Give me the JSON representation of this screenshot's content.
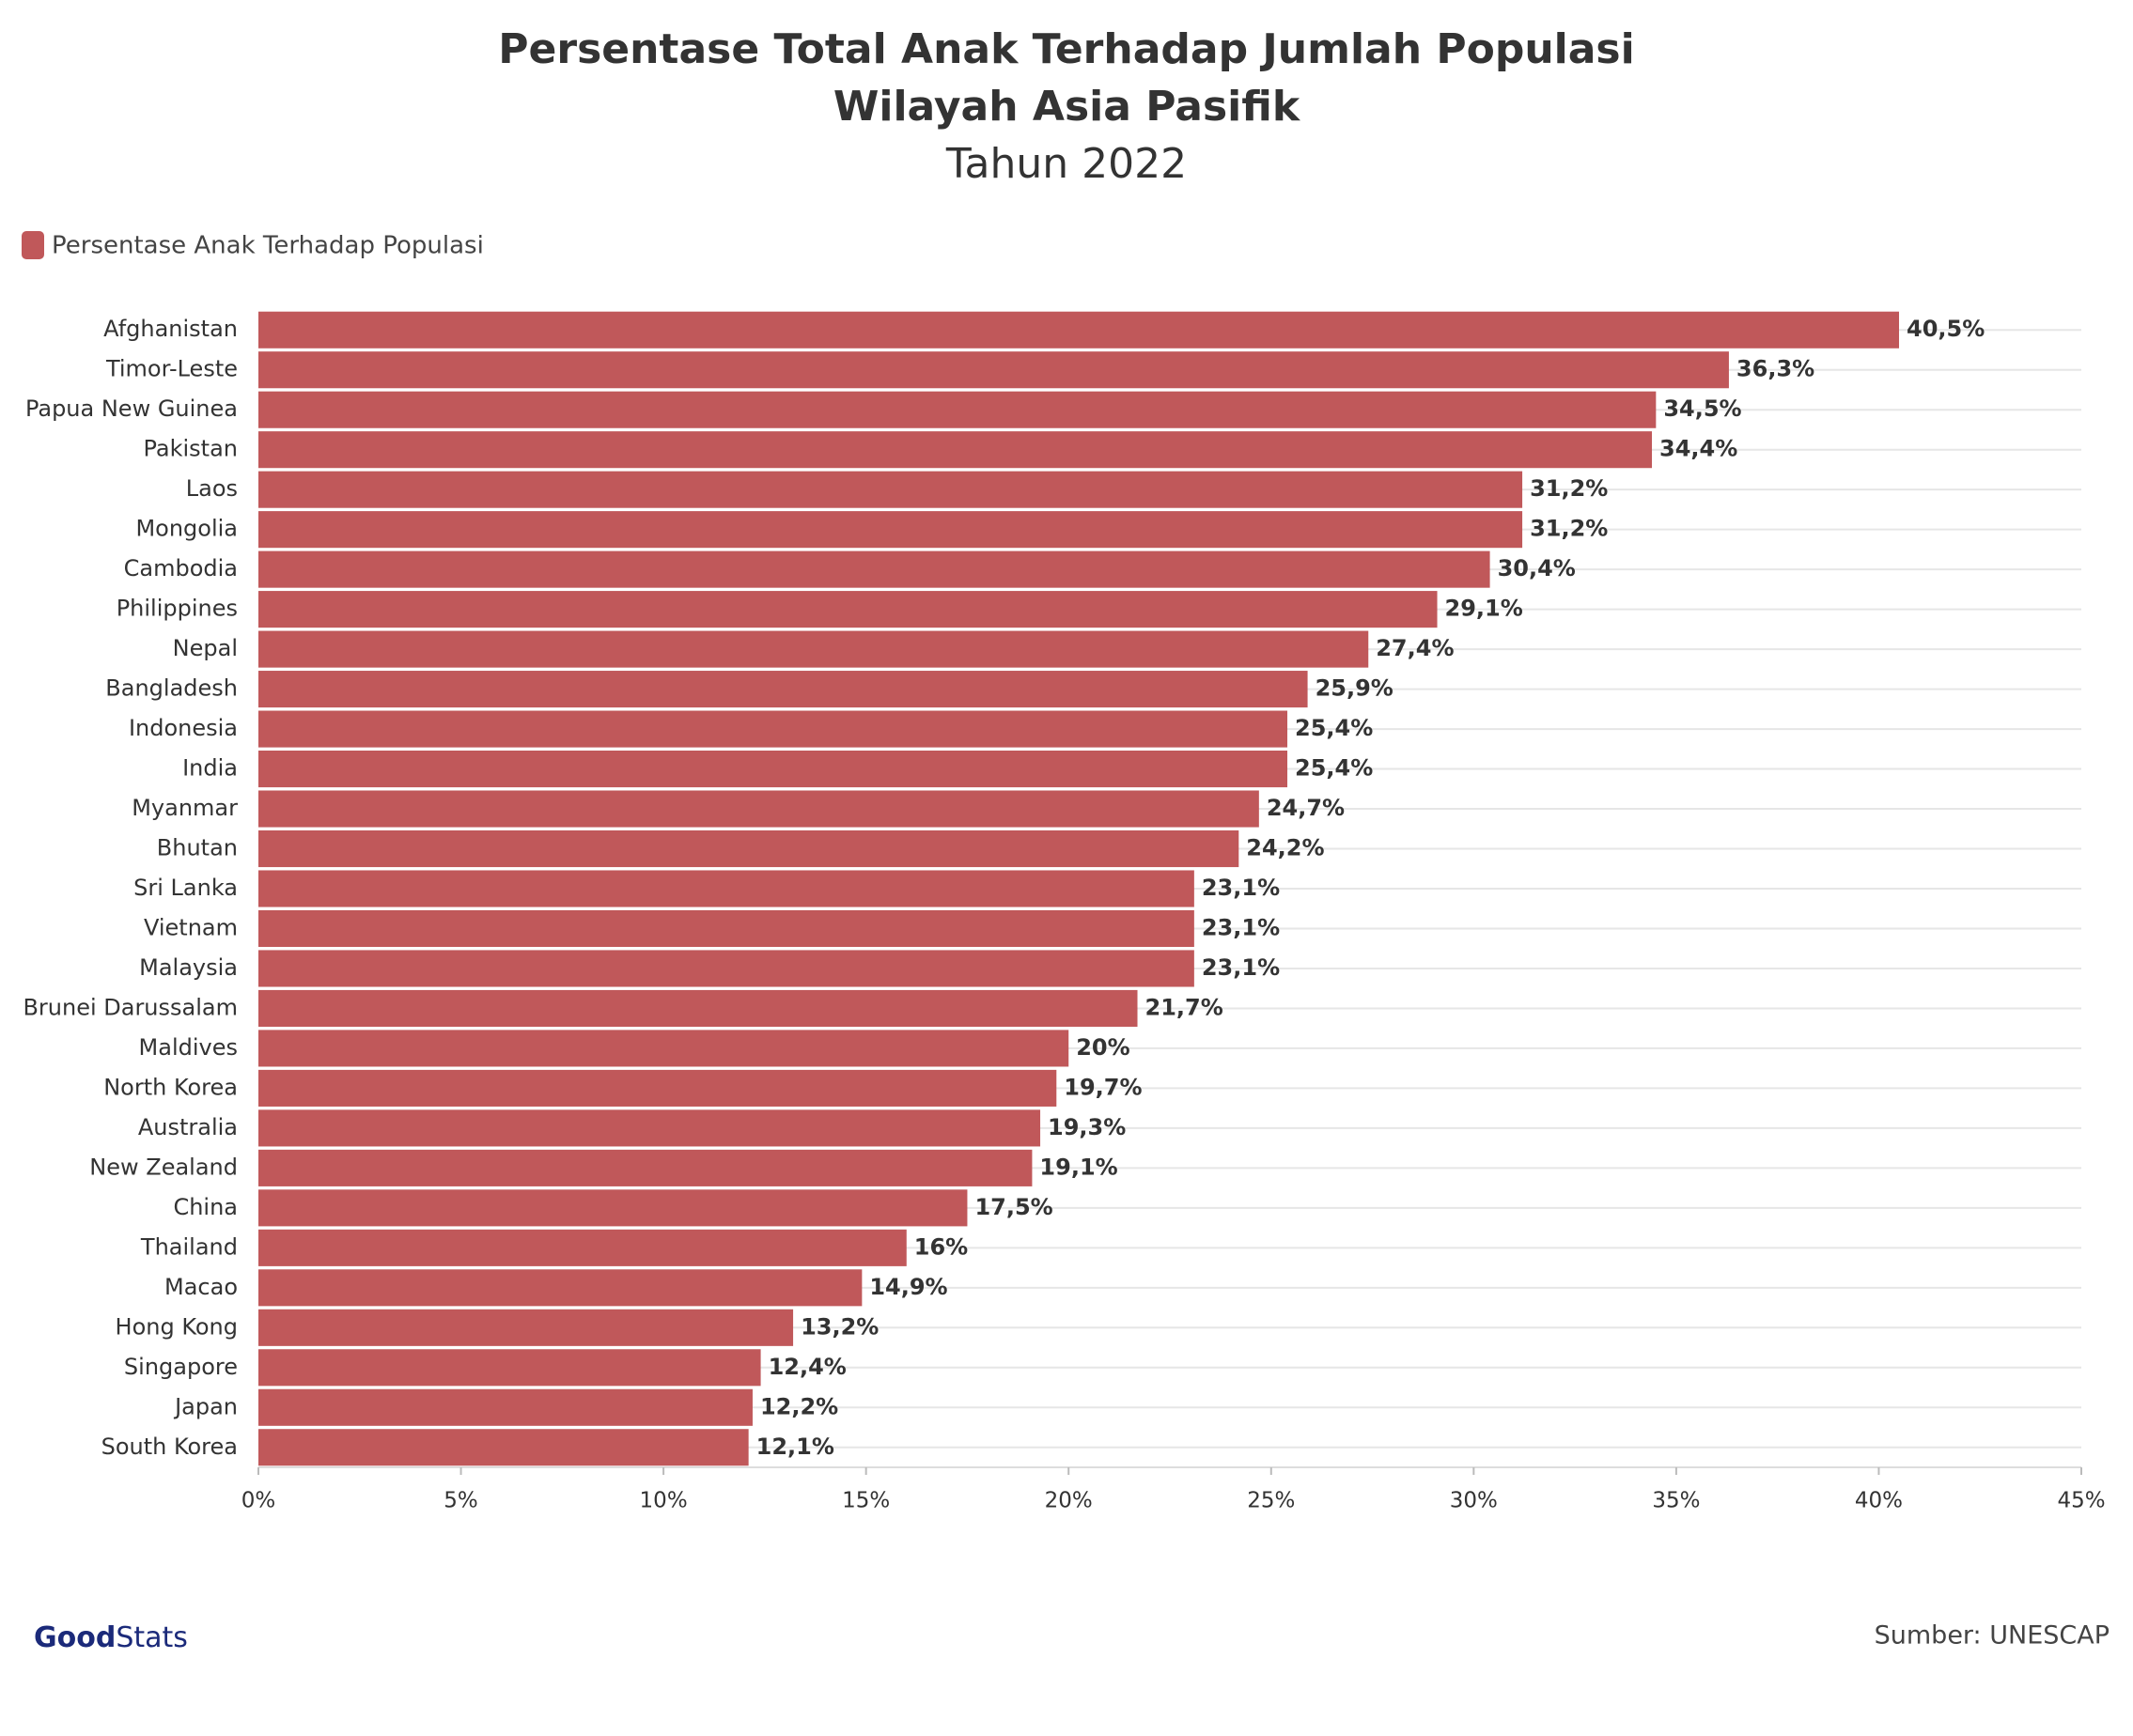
{
  "chart_data": {
    "type": "bar",
    "orientation": "horizontal",
    "title": [
      "Persentase Total Anak Terhadap Jumlah Populasi",
      "Wilayah Asia Pasifik"
    ],
    "subtitle": "Tahun 2022",
    "source": "Sumber: UNESCAP",
    "logo": [
      "Good",
      "Stats"
    ],
    "categories": [
      "Afghanistan",
      "Timor-Leste",
      "Papua New Guinea",
      "Pakistan",
      "Laos",
      "Mongolia",
      "Cambodia",
      "Philippines",
      "Nepal",
      "Bangladesh",
      "Indonesia",
      "India",
      "Myanmar",
      "Bhutan",
      "Sri Lanka",
      "Vietnam",
      "Malaysia",
      "Brunei Darussalam",
      "Maldives",
      "North Korea",
      "Australia",
      "New Zealand",
      "China",
      "Thailand",
      "Macao",
      "Hong Kong",
      "Singapore",
      "Japan",
      "South Korea"
    ],
    "series": [
      {
        "name": "Persentase Anak Terhadap Populasi",
        "color": "#c0585a",
        "values": [
          40.5,
          36.3,
          34.5,
          34.4,
          31.2,
          31.2,
          30.4,
          29.1,
          27.4,
          25.9,
          25.4,
          25.4,
          24.7,
          24.2,
          23.1,
          23.1,
          23.1,
          21.7,
          20,
          19.7,
          19.3,
          19.1,
          17.5,
          16,
          14.9,
          13.2,
          12.4,
          12.2,
          12.1
        ],
        "value_labels": [
          "40,5%",
          "36,3%",
          "34,5%",
          "34,4%",
          "31,2%",
          "31,2%",
          "30,4%",
          "29,1%",
          "27,4%",
          "25,9%",
          "25,4%",
          "25,4%",
          "24,7%",
          "24,2%",
          "23,1%",
          "23,1%",
          "23,1%",
          "21,7%",
          "20%",
          "19,7%",
          "19,3%",
          "19,1%",
          "17,5%",
          "16%",
          "14,9%",
          "13,2%",
          "12,4%",
          "12,2%",
          "12,1%"
        ]
      }
    ],
    "xlim": [
      0,
      45
    ],
    "xticks": [
      {
        "value": 0,
        "label": "0%"
      },
      {
        "value": 5,
        "label": "5%"
      },
      {
        "value": 10,
        "label": "10%"
      },
      {
        "value": 15,
        "label": "15%"
      },
      {
        "value": 20,
        "label": "20%"
      },
      {
        "value": 25,
        "label": "25%"
      },
      {
        "value": 30,
        "label": "30%"
      },
      {
        "value": 35,
        "label": "35%"
      },
      {
        "value": 40,
        "label": "40%"
      },
      {
        "value": 45,
        "label": "45%"
      }
    ],
    "legend": "top-left"
  }
}
